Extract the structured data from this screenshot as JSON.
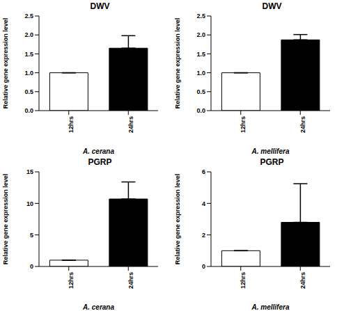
{
  "chart_data": [
    {
      "type": "bar",
      "title": "DWV",
      "categories": [
        "12hrs",
        "24hrs"
      ],
      "values": [
        1.0,
        1.65
      ],
      "errors": [
        0,
        0.33
      ],
      "colors": [
        "#ffffff",
        "#000000"
      ],
      "x_label": "A. cerana",
      "y_label": "Relative gene expression level",
      "ylim": [
        0,
        2.5
      ],
      "yticks": [
        {
          "value": 0,
          "label": "0.0"
        },
        {
          "value": 0.5,
          "label": "0.5"
        },
        {
          "value": 1,
          "label": "1.0"
        },
        {
          "value": 1.5,
          "label": "1.5"
        },
        {
          "value": 2,
          "label": "2.0"
        },
        {
          "value": 2.5,
          "label": "2.5"
        }
      ]
    },
    {
      "type": "bar",
      "title": "DWV",
      "categories": [
        "12hrs",
        "24hrs"
      ],
      "values": [
        1.0,
        1.87
      ],
      "errors": [
        0,
        0.14
      ],
      "colors": [
        "#ffffff",
        "#000000"
      ],
      "x_label": "A. mellifera",
      "y_label": "Relative gene expression level",
      "ylim": [
        0,
        2.5
      ],
      "yticks": [
        {
          "value": 0,
          "label": "0.0"
        },
        {
          "value": 0.5,
          "label": "0.5"
        },
        {
          "value": 1,
          "label": "1.0"
        },
        {
          "value": 1.5,
          "label": "1.5"
        },
        {
          "value": 2,
          "label": "2.0"
        },
        {
          "value": 2.5,
          "label": "2.5"
        }
      ]
    },
    {
      "type": "bar",
      "title": "PGRP",
      "categories": [
        "12hrs",
        "24hrs"
      ],
      "values": [
        1.0,
        10.7
      ],
      "errors": [
        0,
        2.7
      ],
      "colors": [
        "#ffffff",
        "#000000"
      ],
      "x_label": "A. cerana",
      "y_label": "Relative gene expression level",
      "ylim": [
        0,
        15
      ],
      "yticks": [
        0,
        5,
        10,
        15
      ]
    },
    {
      "type": "bar",
      "title": "PGRP",
      "categories": [
        "12hrs",
        "24hrs"
      ],
      "values": [
        1.0,
        2.8
      ],
      "errors": [
        0,
        2.45
      ],
      "colors": [
        "#ffffff",
        "#000000"
      ],
      "x_label": "A. mellifera",
      "y_label": "Relative gene expression level",
      "ylim": [
        0,
        6
      ],
      "yticks": [
        0,
        2,
        4,
        6
      ]
    }
  ]
}
